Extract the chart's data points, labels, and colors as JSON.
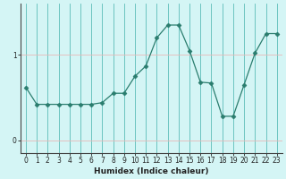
{
  "x": [
    0,
    1,
    2,
    3,
    4,
    5,
    6,
    7,
    8,
    9,
    10,
    11,
    12,
    13,
    14,
    15,
    16,
    17,
    18,
    19,
    20,
    21,
    22,
    23
  ],
  "y": [
    0.62,
    0.42,
    0.42,
    0.42,
    0.42,
    0.42,
    0.42,
    0.44,
    0.55,
    0.55,
    0.75,
    0.87,
    1.2,
    1.35,
    1.35,
    1.05,
    0.68,
    0.67,
    0.28,
    0.28,
    0.65,
    1.02,
    1.25,
    1.25
  ],
  "xlabel": "Humidex (Indice chaleur)",
  "ylim": [
    -0.15,
    1.6
  ],
  "yticks": [
    0,
    1
  ],
  "ytick_labels": [
    "0",
    "1"
  ],
  "line_color": "#2a7d6e",
  "marker": "D",
  "marker_size": 2.5,
  "bg_color": "#d4f5f5",
  "vgrid_color": "#5bbcb8",
  "hgrid_color": "#e8b8b8",
  "xlabel_fontsize": 6.5,
  "tick_fontsize": 5.5
}
